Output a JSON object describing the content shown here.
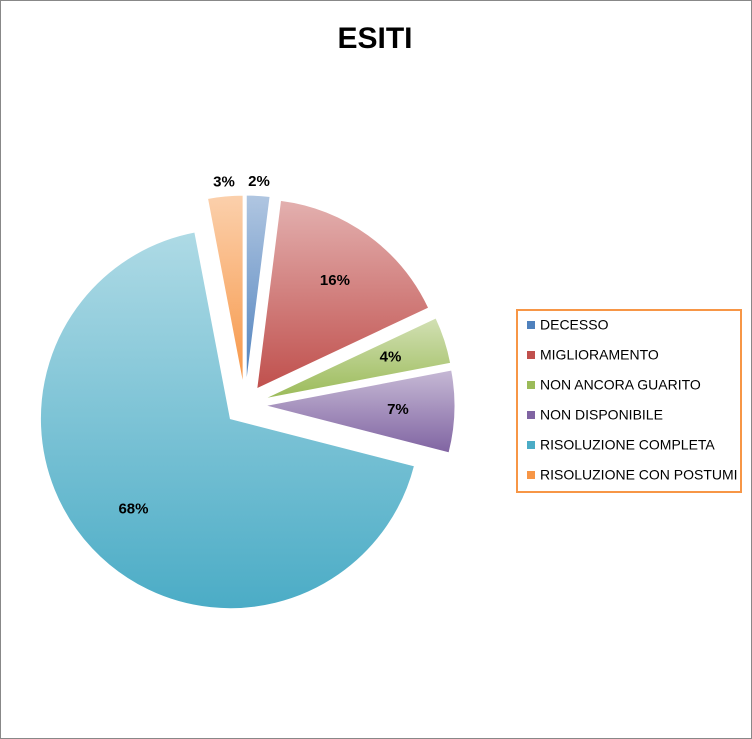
{
  "chart_data": {
    "type": "pie",
    "title": "ESITI",
    "categories": [
      "DECESSO",
      "MIGLIORAMENTO",
      "NON ANCORA GUARITO",
      "NON DISPONIBILE",
      "RISOLUZIONE COMPLETA",
      "RISOLUZIONE CON POSTUMI"
    ],
    "values": [
      2,
      16,
      4,
      7,
      68,
      3
    ],
    "value_labels": [
      "2%",
      "16%",
      "4%",
      "7%",
      "68%",
      "3%"
    ],
    "colors": [
      "#4f81bd",
      "#c0504d",
      "#9bbb59",
      "#8064a2",
      "#4bacc6",
      "#f79646"
    ],
    "legend": "right"
  }
}
